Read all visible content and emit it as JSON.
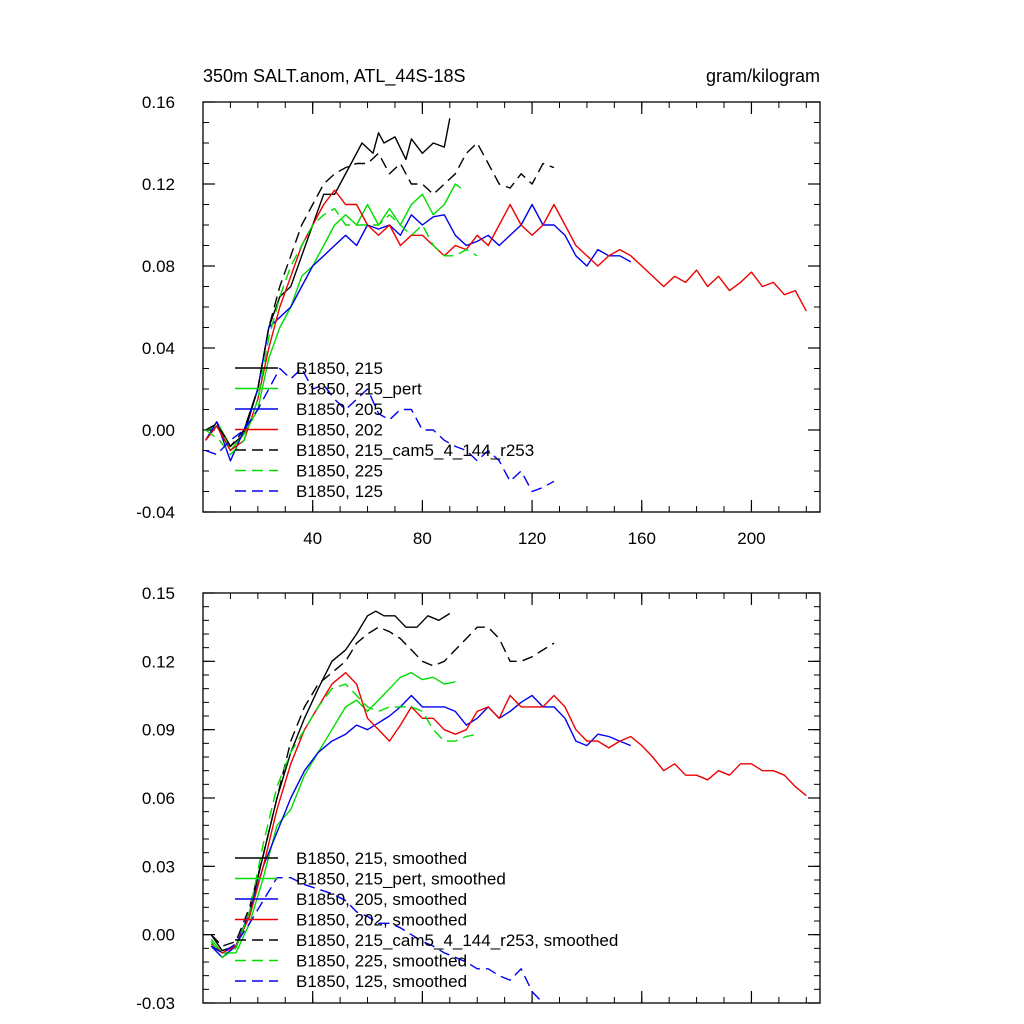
{
  "chart_data": [
    {
      "type": "line",
      "title": "350m SALT.anom, ATL_44S-18S",
      "units": "gram/kilogram",
      "xlabel": "",
      "ylabel": "",
      "xlim": [
        0,
        225
      ],
      "ylim": [
        -0.04,
        0.16
      ],
      "x_ticks": [
        40,
        80,
        120,
        160,
        200
      ],
      "y_ticks": [
        -0.04,
        0.0,
        0.04,
        0.08,
        0.12,
        0.16
      ],
      "y_tick_labels": [
        "-0.04",
        "0.00",
        "0.04",
        "0.08",
        "0.12",
        "0.16"
      ],
      "grid": false,
      "legend_position": "bottom-left",
      "series": [
        {
          "name": "B1850, 215",
          "color": "#000000",
          "dash": "solid",
          "x": [
            1,
            5,
            10,
            15,
            20,
            24,
            28,
            32,
            36,
            40,
            44,
            48,
            50,
            54,
            58,
            62,
            64,
            66,
            70,
            74,
            76,
            80,
            84,
            88,
            90
          ],
          "y": [
            -0.005,
            0.004,
            -0.008,
            -0.002,
            0.02,
            0.05,
            0.065,
            0.07,
            0.085,
            0.1,
            0.115,
            0.115,
            0.12,
            0.13,
            0.14,
            0.135,
            0.145,
            0.14,
            0.143,
            0.132,
            0.142,
            0.135,
            0.14,
            0.138,
            0.152
          ]
        },
        {
          "name": "B1850, 215_pert",
          "color": "#00dd00",
          "dash": "solid",
          "x": [
            1,
            6,
            10,
            15,
            20,
            24,
            28,
            32,
            36,
            40,
            44,
            48,
            52,
            56,
            60,
            64,
            68,
            72,
            76,
            80,
            84,
            88,
            92,
            94
          ],
          "y": [
            0.0,
            0.002,
            -0.01,
            -0.002,
            0.01,
            0.035,
            0.05,
            0.06,
            0.075,
            0.08,
            0.09,
            0.1,
            0.105,
            0.1,
            0.11,
            0.1,
            0.108,
            0.1,
            0.11,
            0.115,
            0.105,
            0.11,
            0.12,
            0.118
          ]
        },
        {
          "name": "B1850, 205",
          "color": "#0000ee",
          "dash": "solid",
          "x": [
            1,
            5,
            10,
            15,
            20,
            24,
            28,
            32,
            36,
            40,
            44,
            48,
            52,
            56,
            60,
            64,
            68,
            72,
            76,
            80,
            84,
            88,
            92,
            96,
            100,
            104,
            108,
            112,
            116,
            120,
            124,
            128,
            132,
            136,
            140,
            144,
            148,
            152,
            156
          ],
          "y": [
            -0.005,
            0.004,
            -0.015,
            0.0,
            0.02,
            0.05,
            0.055,
            0.06,
            0.07,
            0.08,
            0.085,
            0.09,
            0.095,
            0.09,
            0.1,
            0.098,
            0.1,
            0.095,
            0.105,
            0.1,
            0.104,
            0.105,
            0.095,
            0.09,
            0.092,
            0.095,
            0.09,
            0.095,
            0.1,
            0.11,
            0.1,
            0.1,
            0.095,
            0.085,
            0.08,
            0.088,
            0.085,
            0.085,
            0.082
          ]
        },
        {
          "name": "B1850, 202",
          "color": "#ee0000",
          "dash": "solid",
          "x": [
            1,
            5,
            10,
            15,
            20,
            24,
            28,
            32,
            36,
            40,
            44,
            48,
            52,
            56,
            60,
            64,
            68,
            72,
            76,
            80,
            84,
            88,
            92,
            96,
            100,
            104,
            108,
            112,
            116,
            120,
            124,
            128,
            132,
            136,
            140,
            144,
            148,
            152,
            156,
            160,
            164,
            168,
            172,
            176,
            180,
            184,
            188,
            192,
            196,
            200,
            204,
            208,
            212,
            216,
            220
          ],
          "y": [
            -0.005,
            0.002,
            -0.01,
            -0.005,
            0.015,
            0.04,
            0.06,
            0.075,
            0.09,
            0.1,
            0.11,
            0.117,
            0.11,
            0.11,
            0.1,
            0.095,
            0.1,
            0.09,
            0.095,
            0.095,
            0.09,
            0.085,
            0.09,
            0.088,
            0.095,
            0.09,
            0.1,
            0.11,
            0.1,
            0.095,
            0.1,
            0.11,
            0.1,
            0.09,
            0.085,
            0.08,
            0.085,
            0.088,
            0.085,
            0.08,
            0.075,
            0.07,
            0.075,
            0.072,
            0.078,
            0.07,
            0.075,
            0.068,
            0.072,
            0.077,
            0.07,
            0.072,
            0.066,
            0.068,
            0.058
          ]
        },
        {
          "name": "B1850, 215_cam5_4_144_r253",
          "color": "#000000",
          "dash": "dashed",
          "x": [
            1,
            5,
            10,
            15,
            20,
            24,
            28,
            32,
            36,
            40,
            44,
            48,
            52,
            56,
            60,
            64,
            68,
            72,
            76,
            80,
            84,
            88,
            92,
            96,
            100,
            104,
            108,
            112,
            116,
            120,
            124,
            128
          ],
          "y": [
            0.0,
            0.003,
            -0.008,
            0.0,
            0.02,
            0.05,
            0.07,
            0.085,
            0.1,
            0.11,
            0.12,
            0.125,
            0.128,
            0.13,
            0.13,
            0.135,
            0.125,
            0.13,
            0.12,
            0.12,
            0.115,
            0.12,
            0.125,
            0.135,
            0.14,
            0.13,
            0.12,
            0.118,
            0.125,
            0.12,
            0.13,
            0.128
          ]
        },
        {
          "name": "B1850, 225",
          "color": "#00dd00",
          "dash": "dashed",
          "x": [
            1,
            6,
            10,
            15,
            20,
            24,
            28,
            32,
            36,
            40,
            44,
            48,
            52,
            56,
            60,
            64,
            68,
            72,
            76,
            80,
            84,
            88,
            92,
            96,
            100
          ],
          "y": [
            0.0,
            -0.005,
            -0.012,
            -0.005,
            0.015,
            0.045,
            0.065,
            0.08,
            0.09,
            0.1,
            0.105,
            0.108,
            0.1,
            0.1,
            0.1,
            0.1,
            0.105,
            0.1,
            0.095,
            0.1,
            0.09,
            0.085,
            0.085,
            0.088,
            0.085
          ]
        },
        {
          "name": "B1850, 125",
          "color": "#0000ee",
          "dash": "dashed",
          "x": [
            1,
            5,
            10,
            15,
            20,
            24,
            28,
            32,
            36,
            40,
            44,
            48,
            52,
            56,
            60,
            64,
            68,
            72,
            76,
            80,
            84,
            88,
            92,
            96,
            100,
            104,
            108,
            112,
            116,
            120,
            124,
            128
          ],
          "y": [
            -0.01,
            -0.012,
            -0.005,
            0.0,
            0.01,
            0.02,
            0.03,
            0.025,
            0.03,
            0.02,
            0.022,
            0.015,
            0.01,
            0.015,
            0.02,
            0.008,
            0.005,
            0.01,
            0.01,
            0.0,
            0.0,
            -0.005,
            -0.008,
            -0.01,
            -0.015,
            -0.01,
            -0.015,
            -0.025,
            -0.02,
            -0.03,
            -0.028,
            -0.025
          ]
        }
      ]
    },
    {
      "type": "line",
      "title": "",
      "xlabel": "",
      "ylabel": "",
      "xlim": [
        0,
        225
      ],
      "ylim": [
        -0.03,
        0.15
      ],
      "x_ticks": [
        40,
        80,
        120,
        160,
        200
      ],
      "y_ticks": [
        -0.03,
        0.0,
        0.03,
        0.06,
        0.09,
        0.12,
        0.15
      ],
      "y_tick_labels": [
        "-0.03",
        "0.00",
        "0.03",
        "0.06",
        "0.09",
        "0.12",
        "0.15"
      ],
      "grid": false,
      "legend_position": "bottom-left",
      "series": [
        {
          "name": "B1850, 215, smoothed",
          "color": "#000000",
          "dash": "solid",
          "x": [
            3,
            7,
            12,
            17,
            22,
            27,
            32,
            37,
            42,
            47,
            52,
            56,
            60,
            63,
            66,
            70,
            74,
            78,
            82,
            86,
            90
          ],
          "y": [
            0.0,
            -0.007,
            -0.005,
            0.01,
            0.035,
            0.06,
            0.08,
            0.095,
            0.108,
            0.12,
            0.125,
            0.132,
            0.14,
            0.142,
            0.14,
            0.14,
            0.135,
            0.135,
            0.14,
            0.138,
            0.141
          ]
        },
        {
          "name": "B1850, 215_pert, smoothed",
          "color": "#00dd00",
          "dash": "solid",
          "x": [
            3,
            7,
            12,
            17,
            22,
            27,
            32,
            37,
            42,
            47,
            52,
            56,
            60,
            64,
            68,
            72,
            76,
            80,
            84,
            88,
            92
          ],
          "y": [
            -0.002,
            -0.008,
            -0.008,
            0.005,
            0.025,
            0.048,
            0.055,
            0.07,
            0.08,
            0.09,
            0.1,
            0.103,
            0.098,
            0.103,
            0.108,
            0.113,
            0.115,
            0.112,
            0.113,
            0.11,
            0.111
          ]
        },
        {
          "name": "B1850, 205, smoothed",
          "color": "#0000ee",
          "dash": "solid",
          "x": [
            3,
            7,
            12,
            17,
            22,
            27,
            32,
            37,
            42,
            47,
            52,
            56,
            60,
            64,
            68,
            72,
            76,
            80,
            84,
            88,
            92,
            96,
            100,
            104,
            108,
            112,
            116,
            120,
            124,
            128,
            132,
            136,
            140,
            144,
            148,
            152,
            156
          ],
          "y": [
            -0.005,
            -0.01,
            -0.005,
            0.01,
            0.03,
            0.045,
            0.06,
            0.072,
            0.08,
            0.085,
            0.088,
            0.092,
            0.09,
            0.093,
            0.096,
            0.1,
            0.105,
            0.1,
            0.1,
            0.1,
            0.098,
            0.092,
            0.095,
            0.1,
            0.095,
            0.098,
            0.102,
            0.105,
            0.1,
            0.1,
            0.095,
            0.085,
            0.083,
            0.088,
            0.087,
            0.085,
            0.083
          ]
        },
        {
          "name": "B1850, 202, smoothed",
          "color": "#ee0000",
          "dash": "solid",
          "x": [
            3,
            7,
            12,
            17,
            22,
            27,
            32,
            37,
            42,
            47,
            52,
            56,
            60,
            64,
            68,
            72,
            76,
            80,
            84,
            88,
            92,
            96,
            100,
            104,
            108,
            112,
            116,
            120,
            124,
            128,
            132,
            136,
            140,
            144,
            148,
            152,
            156,
            160,
            164,
            168,
            172,
            176,
            180,
            184,
            188,
            192,
            196,
            200,
            204,
            208,
            212,
            216,
            220
          ],
          "y": [
            -0.004,
            -0.008,
            -0.005,
            0.008,
            0.03,
            0.055,
            0.075,
            0.09,
            0.1,
            0.11,
            0.115,
            0.11,
            0.095,
            0.09,
            0.085,
            0.092,
            0.1,
            0.095,
            0.095,
            0.09,
            0.088,
            0.09,
            0.098,
            0.1,
            0.095,
            0.105,
            0.1,
            0.1,
            0.1,
            0.105,
            0.1,
            0.09,
            0.085,
            0.085,
            0.082,
            0.085,
            0.087,
            0.083,
            0.078,
            0.072,
            0.075,
            0.07,
            0.07,
            0.068,
            0.072,
            0.07,
            0.075,
            0.075,
            0.072,
            0.072,
            0.07,
            0.065,
            0.061
          ]
        },
        {
          "name": "B1850, 215_cam5_4_144_r253, smoothed",
          "color": "#000000",
          "dash": "dashed",
          "x": [
            3,
            7,
            12,
            17,
            22,
            27,
            32,
            37,
            42,
            47,
            52,
            56,
            60,
            64,
            68,
            72,
            76,
            80,
            84,
            88,
            92,
            96,
            100,
            104,
            108,
            112,
            116,
            120,
            124,
            128
          ],
          "y": [
            0.0,
            -0.005,
            -0.003,
            0.012,
            0.035,
            0.06,
            0.085,
            0.1,
            0.11,
            0.115,
            0.12,
            0.128,
            0.132,
            0.135,
            0.133,
            0.13,
            0.125,
            0.12,
            0.118,
            0.12,
            0.125,
            0.13,
            0.135,
            0.135,
            0.13,
            0.12,
            0.12,
            0.122,
            0.125,
            0.128
          ]
        },
        {
          "name": "B1850, 225, smoothed",
          "color": "#00dd00",
          "dash": "dashed",
          "x": [
            3,
            7,
            12,
            17,
            22,
            27,
            32,
            37,
            42,
            47,
            52,
            56,
            60,
            64,
            68,
            72,
            76,
            80,
            84,
            88,
            92,
            96,
            100
          ],
          "y": [
            -0.003,
            -0.01,
            -0.006,
            0.01,
            0.04,
            0.065,
            0.08,
            0.09,
            0.1,
            0.108,
            0.11,
            0.105,
            0.1,
            0.098,
            0.1,
            0.1,
            0.1,
            0.098,
            0.09,
            0.085,
            0.085,
            0.087,
            0.088
          ]
        },
        {
          "name": "B1850, 125, smoothed",
          "color": "#0000ee",
          "dash": "dashed",
          "x": [
            3,
            7,
            12,
            17,
            22,
            27,
            32,
            37,
            42,
            47,
            52,
            56,
            60,
            64,
            68,
            72,
            76,
            80,
            84,
            88,
            92,
            96,
            100,
            104,
            108,
            112,
            116,
            120,
            124
          ],
          "y": [
            -0.005,
            -0.008,
            -0.004,
            0.005,
            0.015,
            0.025,
            0.025,
            0.022,
            0.02,
            0.018,
            0.015,
            0.01,
            0.008,
            0.005,
            0.005,
            0.003,
            0.0,
            -0.003,
            -0.005,
            -0.008,
            -0.01,
            -0.012,
            -0.015,
            -0.015,
            -0.018,
            -0.02,
            -0.015,
            -0.025,
            -0.03
          ]
        }
      ]
    }
  ]
}
